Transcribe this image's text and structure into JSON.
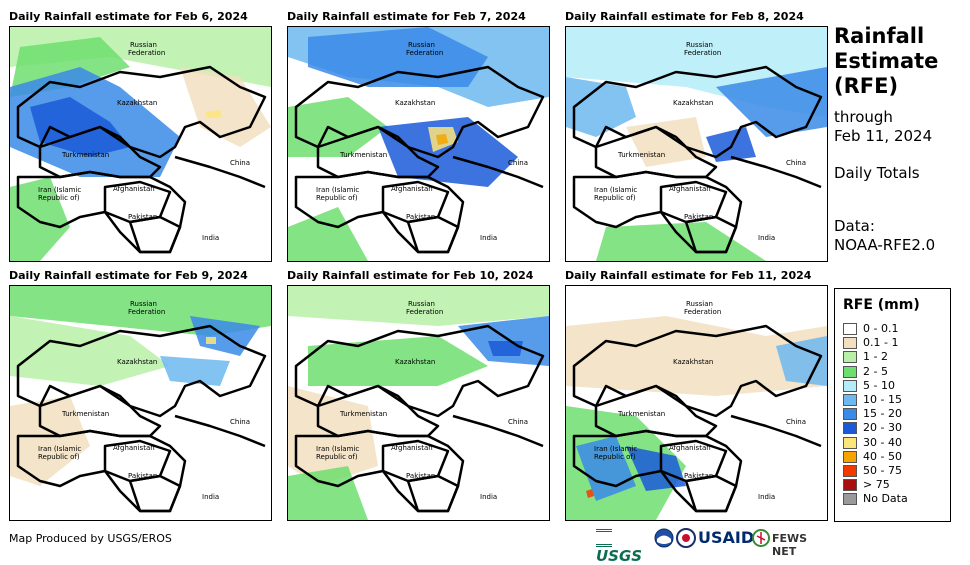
{
  "panels": [
    {
      "title": "Daily Rainfall estimate for Feb 6, 2024"
    },
    {
      "title": "Daily Rainfall estimate for Feb 7, 2024"
    },
    {
      "title": "Daily Rainfall estimate for Feb 8, 2024"
    },
    {
      "title": "Daily Rainfall estimate for Feb 9, 2024"
    },
    {
      "title": "Daily Rainfall estimate for Feb 10, 2024"
    },
    {
      "title": "Daily Rainfall estimate for Feb 11, 2024"
    }
  ],
  "map_labels": {
    "russia_1": "Russian",
    "russia_2": "Federation",
    "kazakhstan": "Kazakhstan",
    "turkmenistan": "Turkmenistan",
    "china": "China",
    "iran_1": "Iran (Islamic",
    "iran_2": "Republic of)",
    "afghanistan": "Afghanistan",
    "pakistan": "Pakistan",
    "india": "India"
  },
  "side": {
    "title_1": "Rainfall",
    "title_2": "Estimate",
    "title_3": "(RFE)",
    "through": "through",
    "date": "Feb 11, 2024",
    "totals": "Daily Totals",
    "data_label": "Data:",
    "data_source": "NOAA-RFE2.0"
  },
  "legend": {
    "title": "RFE (mm)",
    "items": [
      {
        "label": "0 - 0.1",
        "color": "#ffffff"
      },
      {
        "label": "0.1 - 1",
        "color": "#f2dfbf"
      },
      {
        "label": "1 - 2",
        "color": "#b8f0a8"
      },
      {
        "label": "2 - 5",
        "color": "#6ede6e"
      },
      {
        "label": "5 - 10",
        "color": "#b4ecf8"
      },
      {
        "label": "10 - 15",
        "color": "#6cb8f0"
      },
      {
        "label": "15 - 20",
        "color": "#3a8ae8"
      },
      {
        "label": "20 - 30",
        "color": "#1a5ad8"
      },
      {
        "label": "30 - 40",
        "color": "#fce57a"
      },
      {
        "label": "40 - 50",
        "color": "#f6a500"
      },
      {
        "label": "50 - 75",
        "color": "#f23a00"
      },
      {
        "label": "> 75",
        "color": "#a81010"
      },
      {
        "label": "No Data",
        "color": "#9a9a9a"
      }
    ]
  },
  "credit": "Map Produced by USGS/EROS",
  "logos": {
    "usgs": "USGS",
    "usaid": "USAID",
    "fewsnet": "FEWS NET"
  }
}
